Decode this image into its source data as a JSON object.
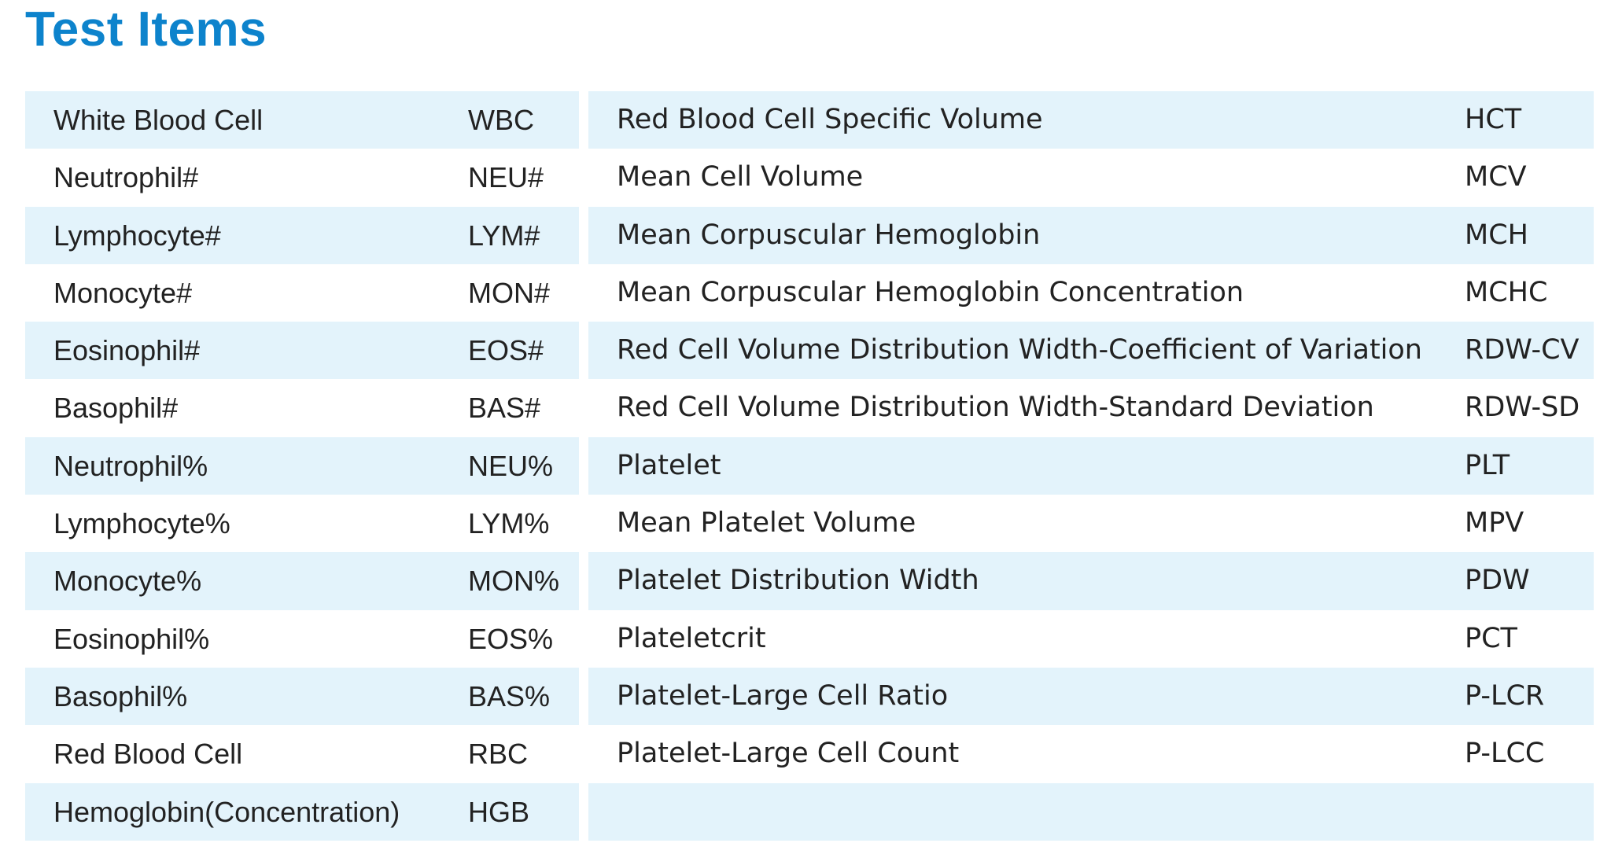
{
  "title": "Test Items",
  "left_rows": [
    {
      "name": "White Blood Cell",
      "abbr": "WBC"
    },
    {
      "name": "Neutrophil#",
      "abbr": "NEU#"
    },
    {
      "name": "Lymphocyte#",
      "abbr": "LYM#"
    },
    {
      "name": "Monocyte#",
      "abbr": "MON#"
    },
    {
      "name": "Eosinophil#",
      "abbr": "EOS#"
    },
    {
      "name": "Basophil#",
      "abbr": "BAS#"
    },
    {
      "name": "Neutrophil%",
      "abbr": "NEU%"
    },
    {
      "name": "Lymphocyte%",
      "abbr": "LYM%"
    },
    {
      "name": "Monocyte%",
      "abbr": "MON%"
    },
    {
      "name": "Eosinophil%",
      "abbr": "EOS%"
    },
    {
      "name": "Basophil%",
      "abbr": "BAS%"
    },
    {
      "name": "Red Blood Cell",
      "abbr": "RBC"
    },
    {
      "name": "Hemoglobin(Concentration)",
      "abbr": "HGB"
    }
  ],
  "right_rows": [
    {
      "name": "Red Blood Cell Specific Volume",
      "abbr": "HCT"
    },
    {
      "name": "Mean Cell Volume",
      "abbr": "MCV"
    },
    {
      "name": "Mean Corpuscular Hemoglobin",
      "abbr": "MCH"
    },
    {
      "name": "Mean Corpuscular Hemoglobin Concentration",
      "abbr": "MCHC"
    },
    {
      "name": "Red Cell Volume Distribution Width-Coefficient of Variation",
      "abbr": "RDW-CV"
    },
    {
      "name": "Red Cell Volume Distribution Width-Standard Deviation",
      "abbr": "RDW-SD"
    },
    {
      "name": "Platelet",
      "abbr": "PLT"
    },
    {
      "name": "Mean Platelet Volume",
      "abbr": "MPV"
    },
    {
      "name": "Platelet Distribution Width",
      "abbr": "PDW"
    },
    {
      "name": "Plateletcrit",
      "abbr": "PCT"
    },
    {
      "name": "Platelet-Large Cell Ratio",
      "abbr": "P-LCR"
    },
    {
      "name": "Platelet-Large Cell Count",
      "abbr": "P-LCC"
    },
    {
      "name": "",
      "abbr": ""
    }
  ],
  "colors": {
    "title": "#0d83cc",
    "row_shade": "#e3f3fb",
    "text": "#222222"
  }
}
